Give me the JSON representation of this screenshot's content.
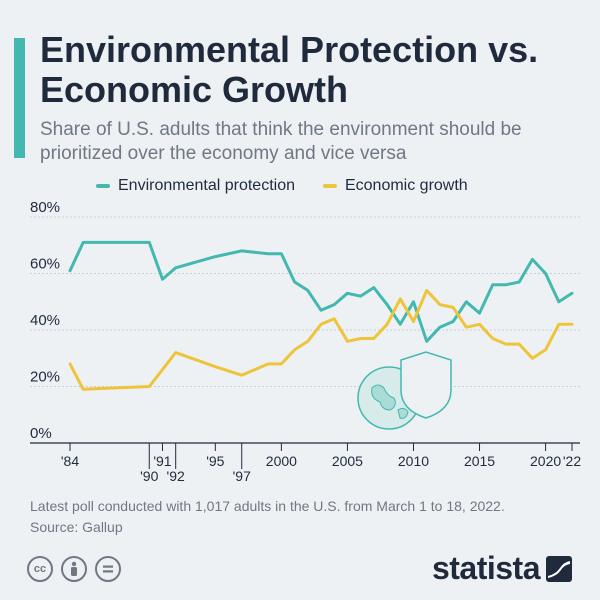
{
  "header": {
    "title": "Environmental Protection vs. Economic Growth",
    "subtitle": "Share of U.S. adults that think the environment should be prioritized over the economy and vice versa"
  },
  "footer": {
    "note": "Latest poll conducted with 1,017 adults in the U.S. from March 1 to 18, 2022.",
    "source": "Source: Gallup",
    "brand": "statista"
  },
  "colors": {
    "accent": "#42b8b1",
    "environment": "#42b8b1",
    "economy": "#eec43a",
    "text": "#1f2b3d",
    "muted": "#6f7884",
    "background": "#eef1f4"
  },
  "chart_data": {
    "type": "line",
    "x": [
      1984,
      1985,
      1990,
      1991,
      1992,
      1995,
      1997,
      1999,
      2000,
      2001,
      2002,
      2003,
      2004,
      2005,
      2006,
      2007,
      2008,
      2009,
      2010,
      2011,
      2012,
      2013,
      2014,
      2015,
      2016,
      2017,
      2018,
      2019,
      2020,
      2021,
      2022
    ],
    "series": [
      {
        "name": "Environmental protection",
        "values": [
          61,
          71,
          71,
          58,
          62,
          66,
          68,
          67,
          67,
          57,
          54,
          47,
          49,
          53,
          52,
          55,
          49,
          42,
          50,
          36,
          41,
          43,
          50,
          46,
          56,
          56,
          57,
          65,
          60,
          50,
          53
        ]
      },
      {
        "name": "Economic growth",
        "values": [
          28,
          19,
          20,
          26,
          32,
          27,
          24,
          28,
          28,
          33,
          36,
          42,
          44,
          36,
          37,
          37,
          42,
          51,
          43,
          54,
          49,
          48,
          41,
          42,
          37,
          35,
          35,
          30,
          33,
          42,
          42
        ]
      }
    ],
    "x_ticks": [
      {
        "x": 1984,
        "label": "'84",
        "row": 0
      },
      {
        "x": 1990,
        "label": "'90",
        "row": 1
      },
      {
        "x": 1991,
        "label": "'91",
        "row": 0
      },
      {
        "x": 1992,
        "label": "'92",
        "row": 1
      },
      {
        "x": 1995,
        "label": "'95",
        "row": 0
      },
      {
        "x": 1997,
        "label": "'97",
        "row": 1
      },
      {
        "x": 2000,
        "label": "2000",
        "row": 0
      },
      {
        "x": 2005,
        "label": "2005",
        "row": 0
      },
      {
        "x": 2010,
        "label": "2010",
        "row": 0
      },
      {
        "x": 2015,
        "label": "2015",
        "row": 0
      },
      {
        "x": 2020,
        "label": "2020",
        "row": 0
      },
      {
        "x": 2022,
        "label": "'22",
        "row": 0
      }
    ],
    "y_ticks": [
      0,
      20,
      40,
      60,
      80
    ],
    "y_tick_labels": [
      "0%",
      "20%",
      "40%",
      "60%",
      "80%"
    ],
    "ylim": [
      0,
      80
    ],
    "grid": true,
    "legend_placement": "top"
  }
}
